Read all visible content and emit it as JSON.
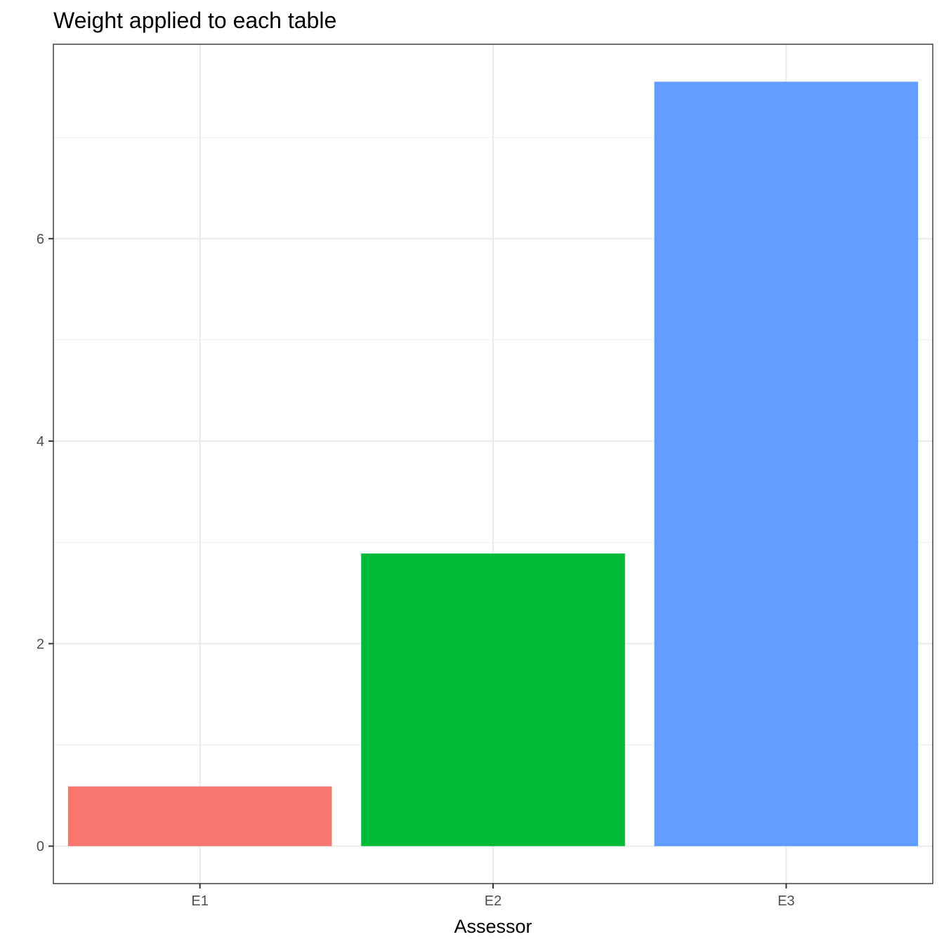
{
  "chart_data": {
    "type": "bar",
    "title": "Weight applied to each table",
    "xlabel": "Assessor",
    "ylabel": "",
    "categories": [
      "E1",
      "E2",
      "E3"
    ],
    "values": [
      0.59,
      2.89,
      7.55
    ],
    "colors": [
      "#F8766D",
      "#00BA38",
      "#619CFF"
    ],
    "ylim": [
      -0.37,
      7.92
    ],
    "yticks": [
      0,
      2,
      4,
      6
    ],
    "ytick_labels": [
      "0",
      "2",
      "4",
      "6"
    ],
    "grid": true,
    "legend": "none"
  }
}
